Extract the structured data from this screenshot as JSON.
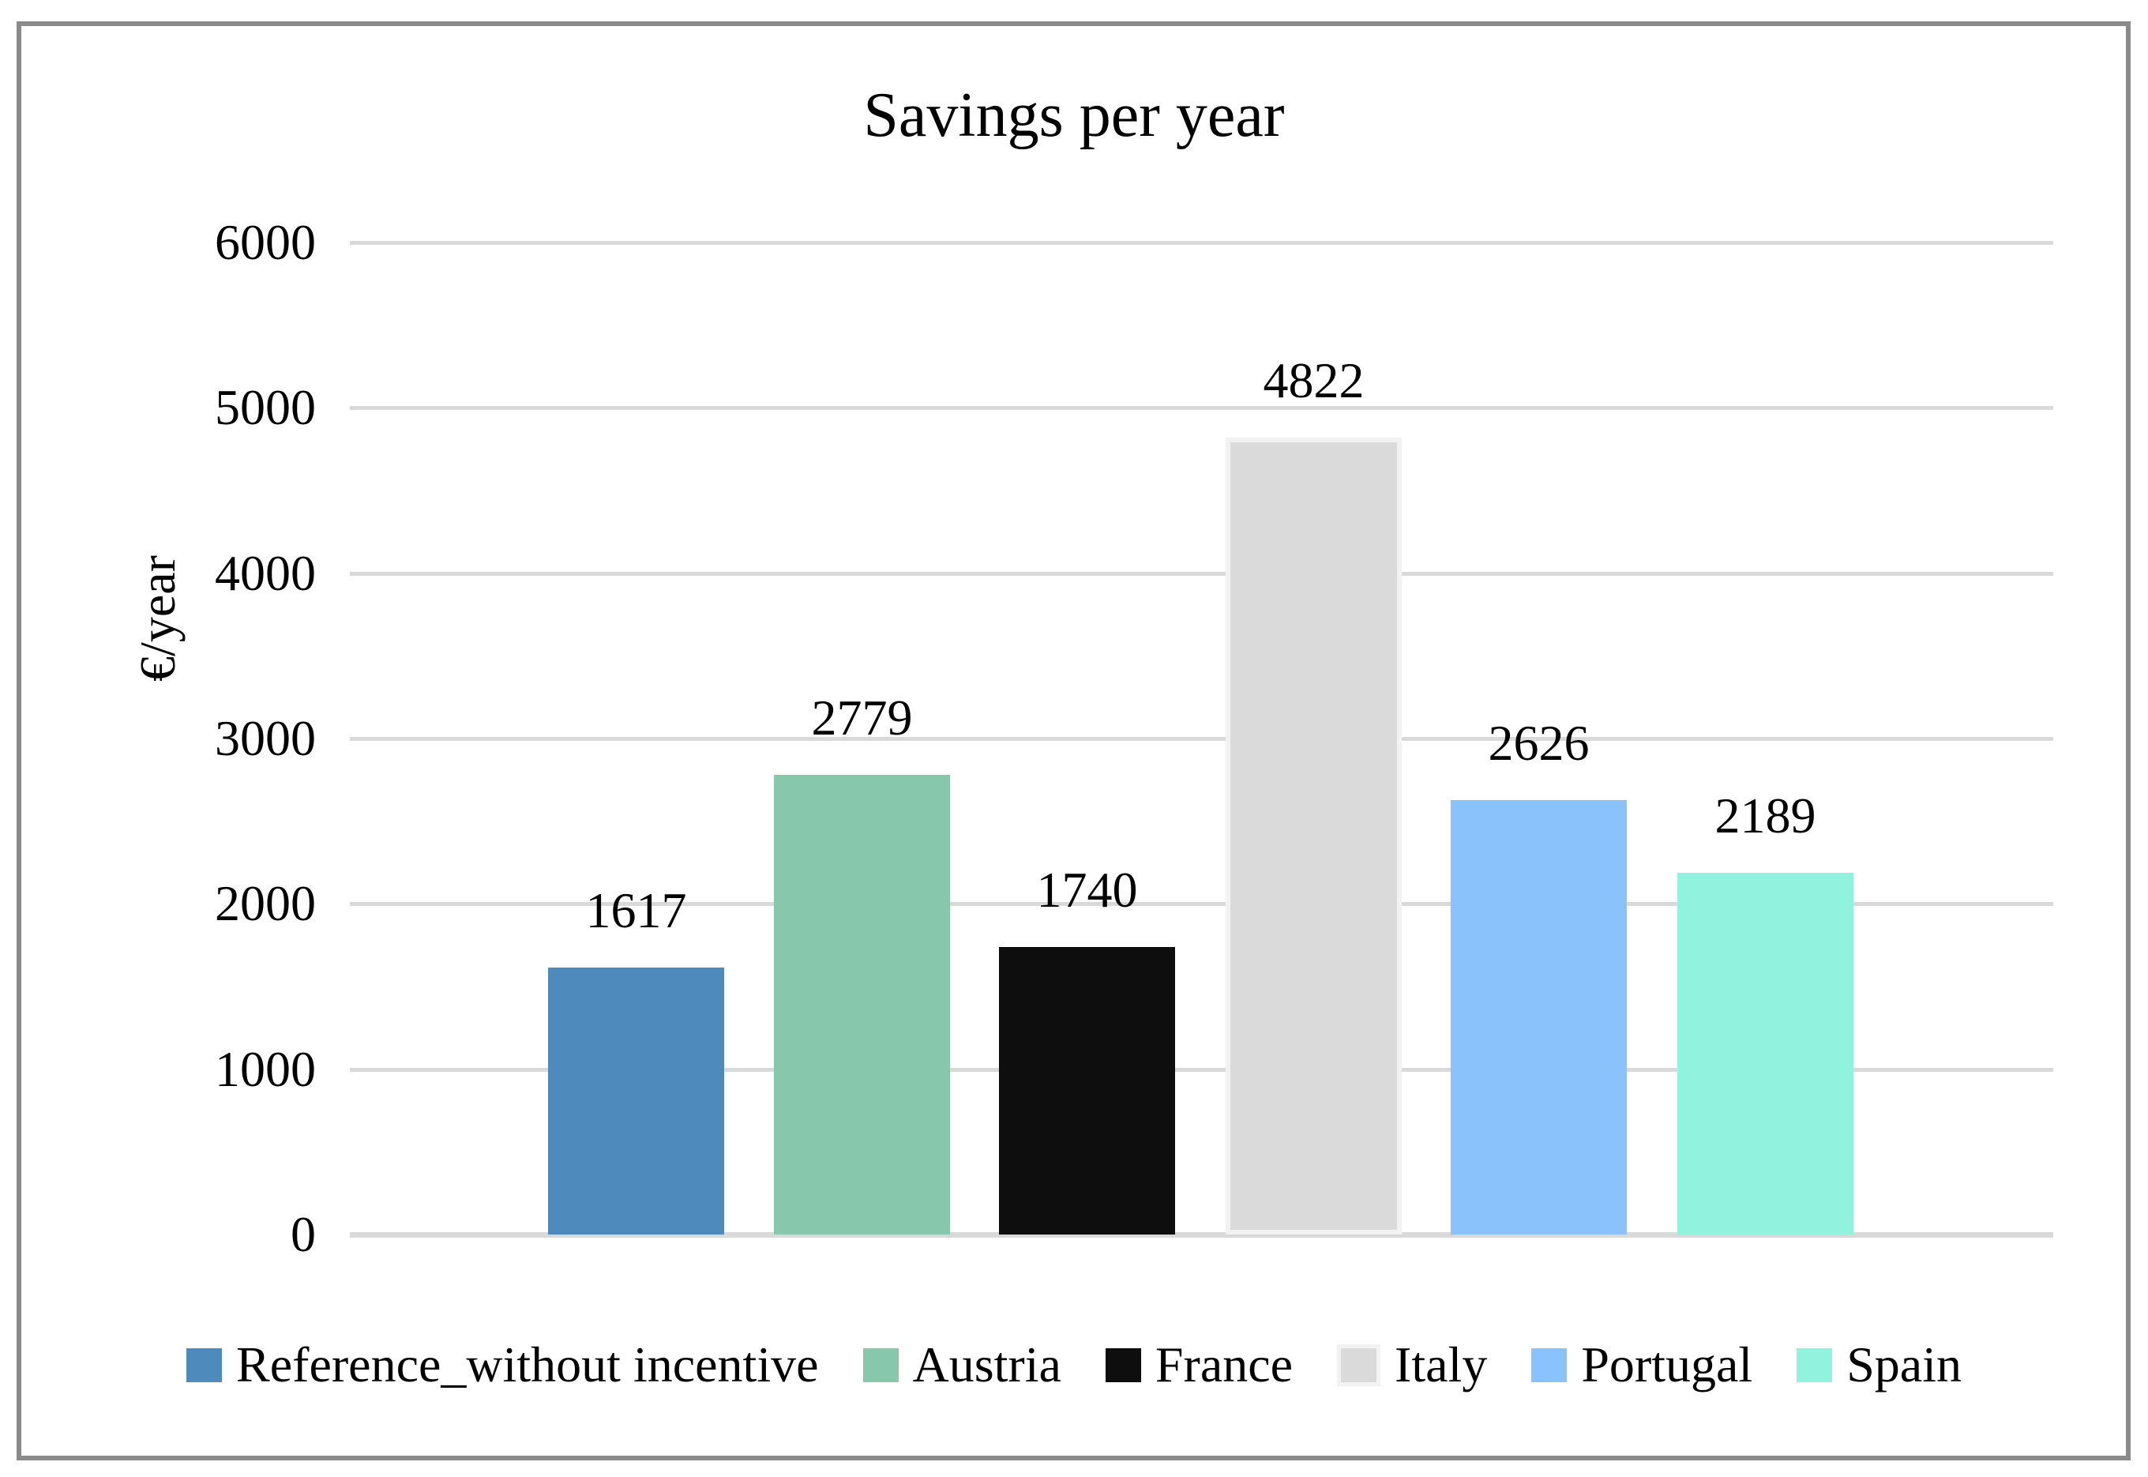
{
  "chart_data": {
    "type": "bar",
    "title": "Savings per year",
    "xlabel": "",
    "ylabel": "€/year",
    "categories": [
      "Reference_without incentive",
      "Austria",
      "France",
      "Italy",
      "Portugal",
      "Spain"
    ],
    "values": [
      1617,
      2779,
      1740,
      4822,
      2626,
      2189
    ],
    "series_colors": [
      "#4F8ABD",
      "#87C7AC",
      "#0E0E0E",
      "#DADADA",
      "#8AC3FB",
      "#91F2DE"
    ],
    "bar_borders": [
      null,
      null,
      null,
      "#F2F2F2",
      null,
      null
    ],
    "data_labels": [
      1617,
      2779,
      1740,
      4822,
      2626,
      2189
    ],
    "ylim": [
      0,
      6000
    ],
    "ytick_step": 1000,
    "ytick_labels": [
      "0",
      "1000",
      "2000",
      "3000",
      "4000",
      "5000",
      "6000"
    ],
    "grid": true,
    "gridline_color": "#D9D9D9",
    "frame_color": "#8A8A8A",
    "legend_position": "bottom",
    "legend_entries": [
      "Reference_without incentive",
      "Austria",
      "France",
      "Italy",
      "Portugal",
      "Spain"
    ]
  }
}
